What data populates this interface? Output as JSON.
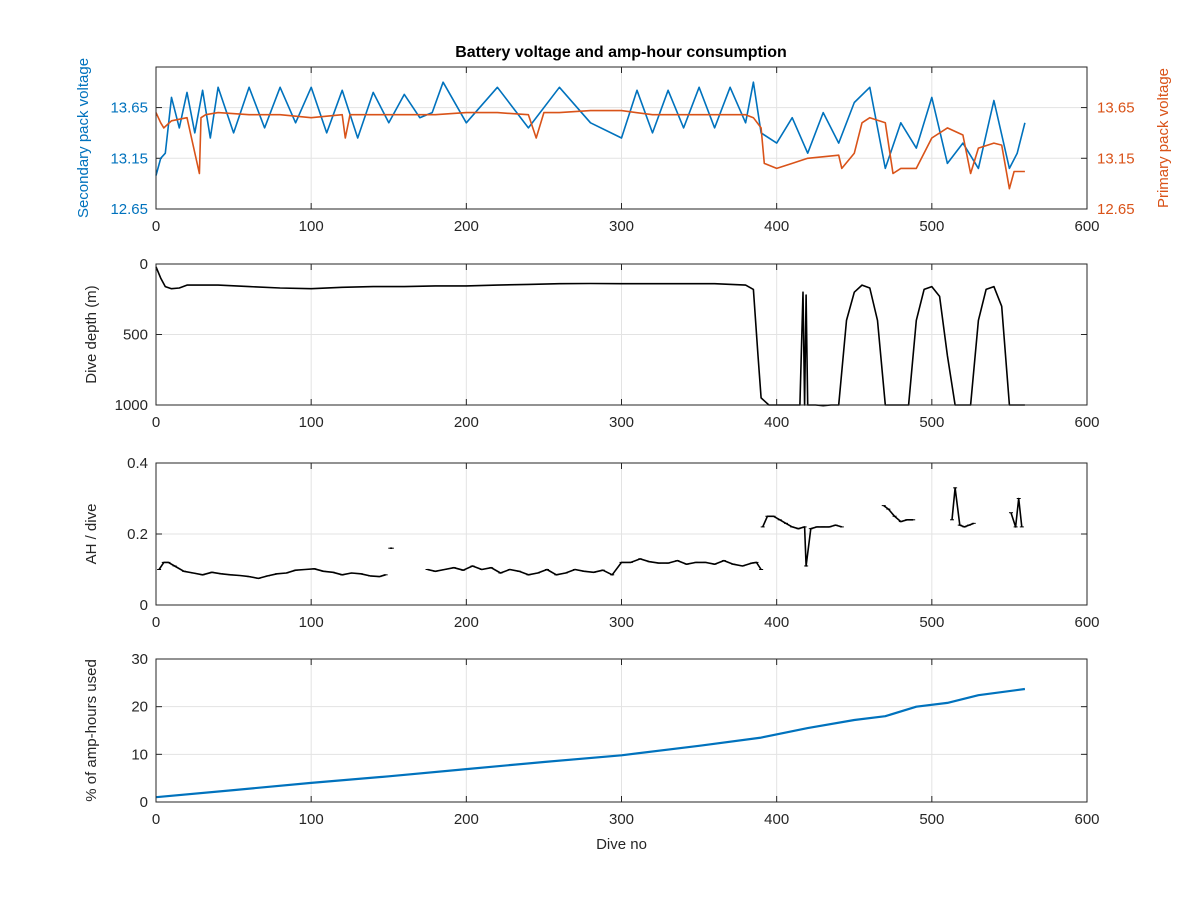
{
  "chart_data": [
    {
      "type": "line",
      "title": "Battery voltage and amp-hour consumption",
      "xlabel": "",
      "ylabel_left": "Secondary pack voltage",
      "ylabel_right": "Primary pack voltage",
      "xlim": [
        0,
        600
      ],
      "ylim_left": [
        12.65,
        14.05
      ],
      "ylim_right": [
        12.65,
        14.05
      ],
      "xticks": [
        "0",
        "100",
        "200",
        "300",
        "400",
        "500",
        "600"
      ],
      "yticks_left": [
        "12.65",
        "13.15",
        "13.65"
      ],
      "yticks_right": [
        "12.65",
        "13.15",
        "13.65"
      ],
      "grid": true,
      "colors": {
        "secondary": "#0072BD",
        "primary": "#D95319"
      },
      "series": [
        {
          "axis": "left",
          "x": [
            0,
            3,
            6,
            10,
            15,
            20,
            25,
            30,
            35,
            40,
            50,
            60,
            70,
            80,
            90,
            100,
            110,
            120,
            130,
            140,
            150,
            160,
            170,
            178,
            185,
            200,
            220,
            240,
            260,
            280,
            300,
            310,
            320,
            330,
            340,
            350,
            360,
            370,
            380,
            385,
            390,
            400,
            410,
            420,
            430,
            440,
            450,
            460,
            470,
            480,
            490,
            500,
            510,
            520,
            530,
            540,
            550,
            555,
            560
          ],
          "values": [
            12.98,
            13.15,
            13.2,
            13.75,
            13.45,
            13.8,
            13.4,
            13.82,
            13.35,
            13.85,
            13.4,
            13.85,
            13.45,
            13.85,
            13.5,
            13.85,
            13.4,
            13.82,
            13.35,
            13.8,
            13.5,
            13.78,
            13.55,
            13.6,
            13.9,
            13.5,
            13.85,
            13.45,
            13.85,
            13.5,
            13.35,
            13.82,
            13.4,
            13.82,
            13.45,
            13.85,
            13.45,
            13.85,
            13.5,
            13.9,
            13.4,
            13.3,
            13.55,
            13.2,
            13.6,
            13.3,
            13.7,
            13.85,
            13.05,
            13.5,
            13.25,
            13.75,
            13.1,
            13.3,
            13.05,
            13.72,
            13.05,
            13.2,
            13.5
          ]
        },
        {
          "axis": "right",
          "x": [
            0,
            3,
            5,
            10,
            20,
            28,
            29,
            32,
            40,
            60,
            80,
            100,
            120,
            122,
            125,
            140,
            160,
            180,
            200,
            220,
            240,
            245,
            250,
            260,
            280,
            300,
            320,
            340,
            360,
            380,
            385,
            390,
            392,
            400,
            410,
            420,
            440,
            442,
            450,
            455,
            460,
            470,
            475,
            480,
            490,
            500,
            510,
            520,
            525,
            530,
            540,
            545,
            550,
            553,
            560
          ],
          "values": [
            13.6,
            13.5,
            13.45,
            13.52,
            13.55,
            13.0,
            13.55,
            13.58,
            13.6,
            13.58,
            13.58,
            13.55,
            13.58,
            13.35,
            13.58,
            13.58,
            13.58,
            13.58,
            13.6,
            13.6,
            13.58,
            13.35,
            13.6,
            13.6,
            13.62,
            13.62,
            13.58,
            13.58,
            13.58,
            13.58,
            13.55,
            13.45,
            13.1,
            13.05,
            13.1,
            13.15,
            13.18,
            13.05,
            13.2,
            13.5,
            13.55,
            13.5,
            13.0,
            13.05,
            13.05,
            13.35,
            13.45,
            13.38,
            13.0,
            13.25,
            13.3,
            13.28,
            12.85,
            13.02,
            13.02
          ]
        }
      ]
    },
    {
      "type": "line",
      "title": "",
      "xlabel": "",
      "ylabel": "Dive depth (m)",
      "xlim": [
        0,
        600
      ],
      "ylim": [
        1000,
        0
      ],
      "xticks": [
        "0",
        "100",
        "200",
        "300",
        "400",
        "500",
        "600"
      ],
      "yticks": [
        "0",
        "500",
        "1000"
      ],
      "grid": true,
      "series": [
        {
          "x": [
            0,
            3,
            6,
            10,
            15,
            20,
            40,
            60,
            80,
            100,
            120,
            140,
            160,
            180,
            200,
            220,
            240,
            260,
            280,
            300,
            320,
            340,
            360,
            380,
            385,
            388,
            390,
            393,
            395,
            400,
            415,
            417,
            418,
            419,
            420,
            421,
            425,
            430,
            435,
            440,
            445,
            450,
            455,
            460,
            465,
            470,
            475,
            480,
            485,
            490,
            495,
            500,
            505,
            510,
            515,
            520,
            525,
            530,
            535,
            540,
            545,
            550,
            555,
            560
          ],
          "values": [
            20,
            100,
            160,
            175,
            170,
            150,
            150,
            160,
            170,
            175,
            165,
            160,
            160,
            155,
            155,
            150,
            145,
            140,
            138,
            140,
            140,
            140,
            140,
            150,
            180,
            650,
            950,
            980,
            1000,
            1000,
            1000,
            200,
            1000,
            220,
            1000,
            1000,
            1000,
            1005,
            1000,
            1000,
            400,
            200,
            150,
            170,
            400,
            1000,
            1000,
            1000,
            1000,
            400,
            180,
            160,
            230,
            650,
            1000,
            1000,
            1000,
            400,
            180,
            160,
            300,
            1000,
            1000,
            1000
          ]
        }
      ]
    },
    {
      "type": "line",
      "title": "",
      "xlabel": "",
      "ylabel": "AH / dive",
      "xlim": [
        0,
        600
      ],
      "ylim": [
        0,
        0.4
      ],
      "xticks": [
        "0",
        "100",
        "200",
        "300",
        "400",
        "500",
        "600"
      ],
      "yticks": [
        "0",
        "0.2",
        "0.4"
      ],
      "grid": true,
      "series": [
        {
          "x": [
            2,
            5,
            8,
            12,
            18,
            24,
            30,
            36,
            42,
            48,
            54,
            60,
            66,
            72,
            78,
            84,
            90,
            96,
            102,
            108,
            114,
            120,
            126,
            132,
            138,
            144,
            148
          ],
          "values": [
            0.1,
            0.12,
            0.12,
            0.11,
            0.095,
            0.09,
            0.085,
            0.092,
            0.088,
            0.085,
            0.083,
            0.08,
            0.075,
            0.082,
            0.088,
            0.09,
            0.098,
            0.1,
            0.102,
            0.095,
            0.092,
            0.085,
            0.09,
            0.088,
            0.082,
            0.08,
            0.085
          ]
        },
        {
          "x": [
            151,
            152
          ],
          "values": [
            0.16,
            0.16
          ]
        },
        {
          "x": [
            175,
            180,
            186,
            192,
            198,
            204,
            210,
            216,
            222,
            228,
            234,
            240,
            246,
            252,
            258,
            264,
            270,
            276,
            282,
            288,
            294,
            300,
            306,
            312,
            318,
            324,
            330,
            336,
            342,
            348,
            354,
            360,
            366,
            372,
            378,
            384,
            387,
            390
          ],
          "values": [
            0.1,
            0.095,
            0.1,
            0.105,
            0.098,
            0.11,
            0.1,
            0.105,
            0.09,
            0.1,
            0.095,
            0.085,
            0.09,
            0.1,
            0.085,
            0.09,
            0.1,
            0.095,
            0.092,
            0.098,
            0.085,
            0.12,
            0.12,
            0.13,
            0.122,
            0.118,
            0.118,
            0.125,
            0.115,
            0.12,
            0.12,
            0.115,
            0.125,
            0.115,
            0.11,
            0.118,
            0.12,
            0.1
          ]
        },
        {
          "x": [
            391,
            394,
            398,
            402,
            406,
            410,
            414,
            418,
            419,
            422,
            426,
            430,
            434,
            438,
            442
          ],
          "values": [
            0.22,
            0.25,
            0.25,
            0.24,
            0.23,
            0.22,
            0.215,
            0.22,
            0.11,
            0.215,
            0.22,
            0.22,
            0.22,
            0.225,
            0.22
          ]
        },
        {
          "x": [
            469,
            472,
            476,
            480,
            484,
            488
          ],
          "values": [
            0.28,
            0.27,
            0.25,
            0.235,
            0.24,
            0.24
          ]
        },
        {
          "x": [
            513,
            515,
            518,
            521,
            524,
            527
          ],
          "values": [
            0.24,
            0.33,
            0.225,
            0.22,
            0.225,
            0.23
          ]
        },
        {
          "x": [
            551,
            554,
            556,
            558
          ],
          "values": [
            0.26,
            0.22,
            0.3,
            0.22
          ]
        }
      ]
    },
    {
      "type": "line",
      "title": "",
      "xlabel": "Dive no",
      "ylabel": "% of amp-hours used",
      "xlim": [
        0,
        600
      ],
      "ylim": [
        0,
        30
      ],
      "xticks": [
        "0",
        "100",
        "200",
        "300",
        "400",
        "500",
        "600"
      ],
      "yticks": [
        "0",
        "10",
        "20",
        "30"
      ],
      "grid": true,
      "colors": {
        "line": "#0072BD"
      },
      "series": [
        {
          "x": [
            0,
            50,
            100,
            150,
            200,
            250,
            300,
            350,
            390,
            420,
            450,
            470,
            490,
            510,
            530,
            560
          ],
          "values": [
            1.0,
            2.5,
            4.0,
            5.4,
            6.9,
            8.4,
            9.8,
            11.8,
            13.5,
            15.5,
            17.2,
            18.0,
            20.0,
            20.8,
            22.4,
            23.7
          ]
        }
      ]
    }
  ]
}
